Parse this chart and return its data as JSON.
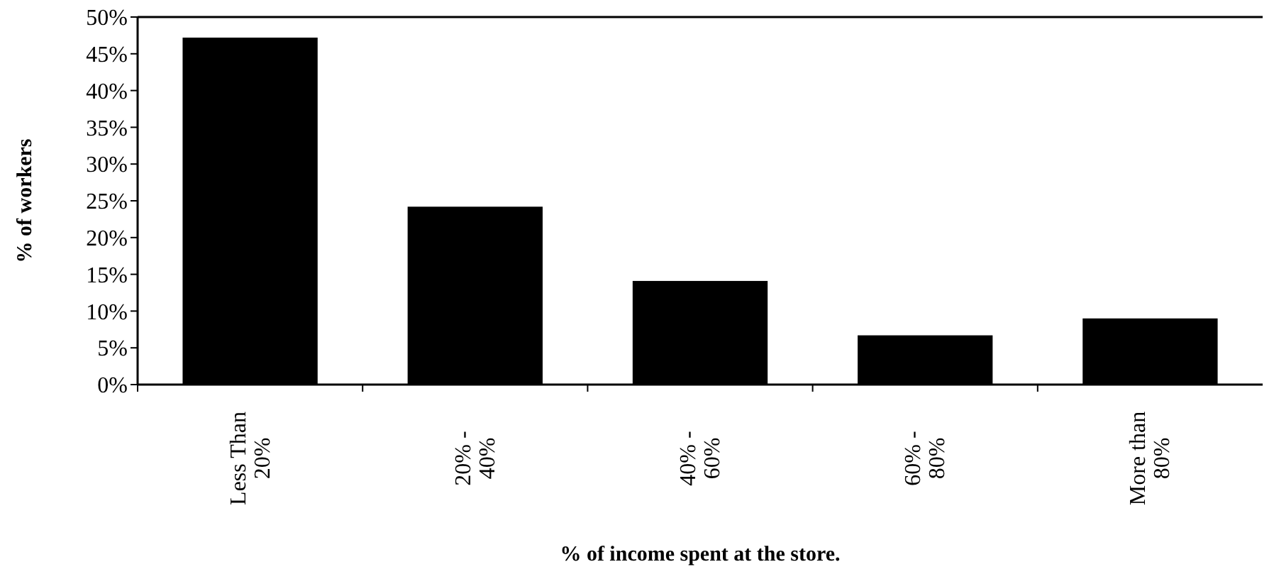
{
  "chart_data": {
    "type": "bar",
    "xlabel": "% of income spent at the store.",
    "ylabel": "% of workers",
    "categories": [
      "Less Than 20%",
      "20% - 40%",
      "40% - 60%",
      "60% - 80%",
      "More than 80%"
    ],
    "values": [
      47.2,
      24.2,
      14.1,
      6.7,
      9.0
    ],
    "color": "#000000",
    "ylim": [
      0,
      50
    ],
    "yticks": [
      {
        "value": 0,
        "label": "0%"
      },
      {
        "value": 5,
        "label": "5%"
      },
      {
        "value": 10,
        "label": "10%"
      },
      {
        "value": 15,
        "label": "15%"
      },
      {
        "value": 20,
        "label": "20%"
      },
      {
        "value": 25,
        "label": "25%"
      },
      {
        "value": 30,
        "label": "30%"
      },
      {
        "value": 35,
        "label": "35%"
      },
      {
        "value": 40,
        "label": "40%"
      },
      {
        "value": 45,
        "label": "45%"
      },
      {
        "value": 50,
        "label": "50%"
      }
    ],
    "grid": false
  }
}
